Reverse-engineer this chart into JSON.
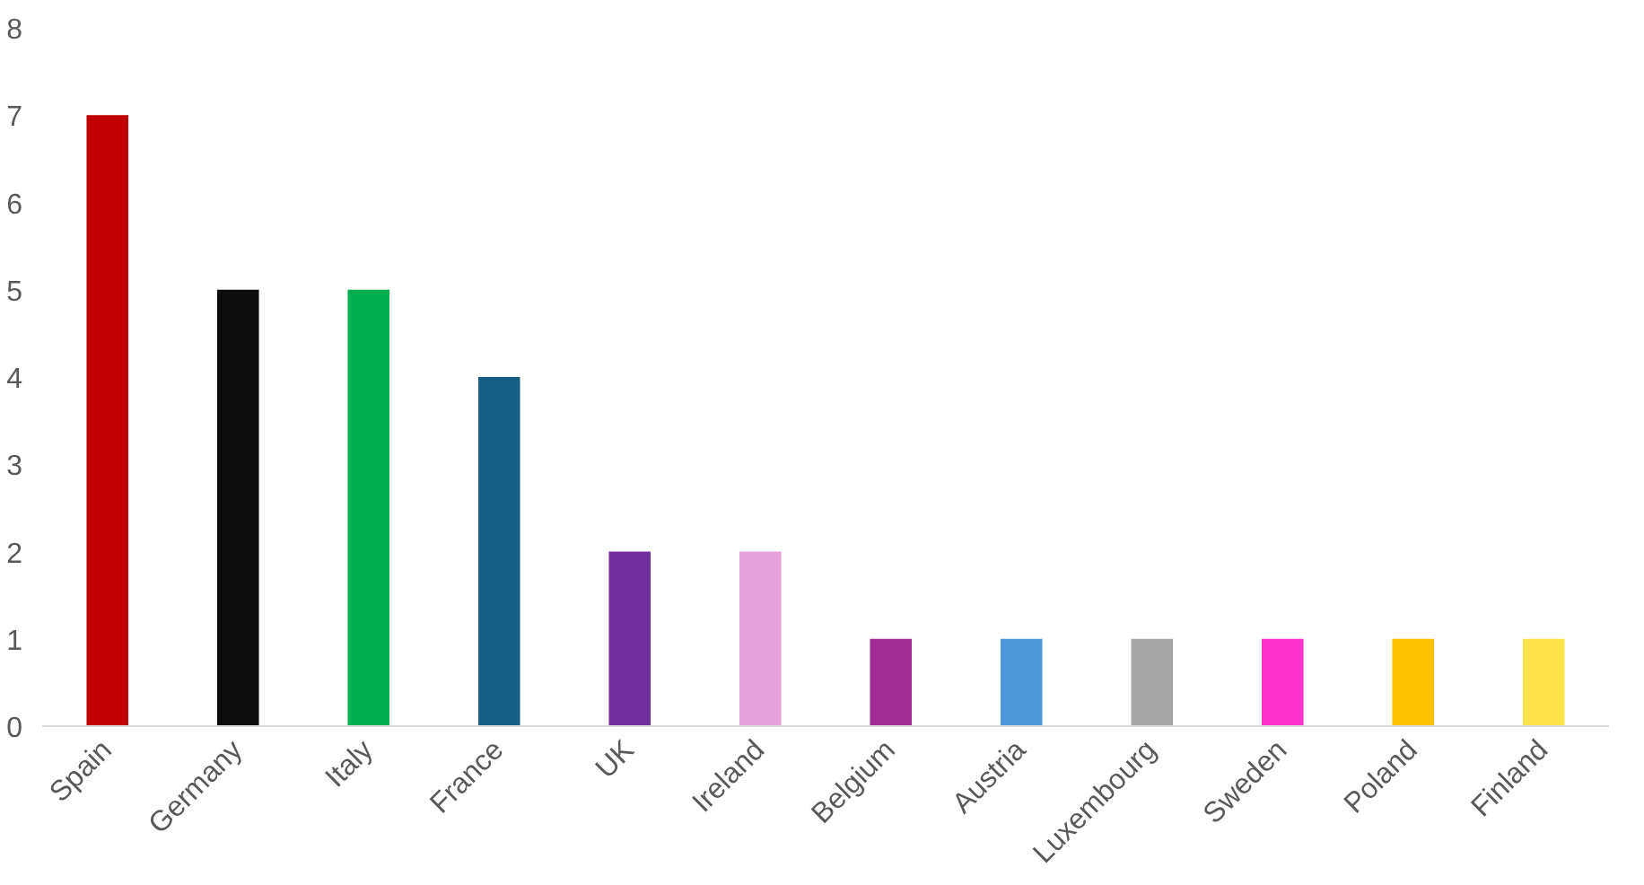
{
  "chart_data": {
    "type": "bar",
    "categories": [
      "Spain",
      "Germany",
      "Italy",
      "France",
      "UK",
      "Ireland",
      "Belgium",
      "Austria",
      "Luxembourg",
      "Sweden",
      "Poland",
      "Finland"
    ],
    "values": [
      7,
      5,
      5,
      4,
      2,
      2,
      1,
      1,
      1,
      1,
      1,
      1
    ],
    "colors": [
      "#c00000",
      "#0d0d0d",
      "#00b050",
      "#175e84",
      "#7030a0",
      "#e6a0dc",
      "#a02b93",
      "#4e95d9",
      "#a6a6a6",
      "#ff33cc",
      "#ffc000",
      "#ffe34d"
    ],
    "ylim": [
      0,
      8
    ],
    "yticks": [
      0,
      1,
      2,
      3,
      4,
      5,
      6,
      7,
      8
    ],
    "grid": false
  }
}
